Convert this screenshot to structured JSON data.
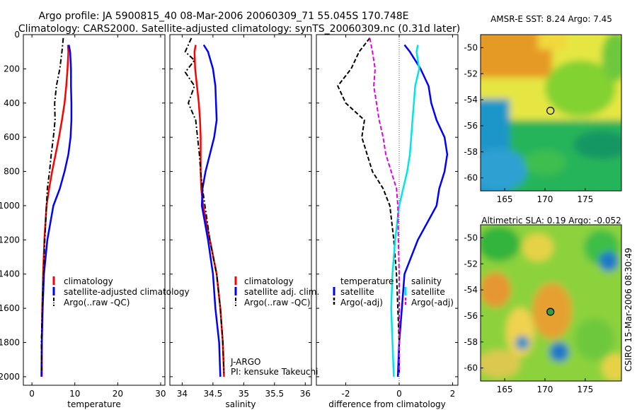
{
  "title": {
    "line1": "Argo profile: JA 5900815_40 08-Mar-2006 20060309_71 55.045S 170.748E",
    "line2": "Climatology: CARS2000. Satellite-adjusted climatology: synTS_20060309.nc (0.31d later)"
  },
  "side_label": "CSIRO 15-Mar-2006 08:30:49",
  "credit": {
    "line1": "J-ARGO",
    "line2": "PI: kensuke Takeuchi"
  },
  "colors": {
    "climatology": "#ff0000",
    "satellite": "#0000ff",
    "argo": "#000000",
    "salinity_sat": "#00e6e6",
    "salinity_argo": "#e600e6",
    "zero_line": "#555555"
  },
  "chart_data": [
    {
      "type": "line",
      "xlabel": "temperature",
      "ylim": [
        2050,
        0
      ],
      "xlim": [
        -2,
        31
      ],
      "xticks": [
        0,
        10,
        20,
        30
      ],
      "yticks": [
        0,
        200,
        400,
        600,
        800,
        1000,
        1200,
        1400,
        1600,
        1800,
        2000
      ],
      "legend": [
        "climatology",
        "satellite-adjusted climatology",
        "Argo(..raw -QC)"
      ],
      "legend_position": "lower-right",
      "series": [
        {
          "name": "climatology",
          "color": "red",
          "style": "solid",
          "x": [
            8.4,
            8.5,
            8.3,
            8.0,
            7.6,
            7.0,
            6.3,
            5.5,
            4.7,
            4.0,
            3.4,
            2.9,
            2.6,
            2.4,
            2.3,
            2.3
          ],
          "y": [
            60,
            100,
            200,
            300,
            400,
            500,
            600,
            700,
            800,
            900,
            1000,
            1200,
            1400,
            1600,
            1800,
            2000
          ]
        },
        {
          "name": "satellite-adjusted climatology",
          "color": "blue",
          "style": "solid",
          "x": [
            8.6,
            8.9,
            9.1,
            9.1,
            9.2,
            9.2,
            9.0,
            8.5,
            7.6,
            6.5,
            5.0,
            3.6,
            2.8,
            2.5,
            2.3,
            2.2
          ],
          "y": [
            60,
            100,
            200,
            300,
            400,
            500,
            600,
            700,
            800,
            900,
            1000,
            1200,
            1400,
            1600,
            1800,
            2000
          ]
        },
        {
          "name": "Argo(..raw -QC)",
          "color": "black",
          "style": "dashdot",
          "x": [
            7.3,
            7.0,
            6.5,
            5.7,
            5.3,
            5.4,
            5.0,
            4.5,
            4.1,
            3.6,
            3.4,
            3.0,
            2.7,
            2.4,
            2.2,
            2.3
          ],
          "y": [
            20,
            100,
            200,
            300,
            400,
            500,
            600,
            700,
            800,
            900,
            1000,
            1200,
            1400,
            1600,
            1800,
            1980
          ]
        }
      ]
    },
    {
      "type": "line",
      "xlabel": "salinity",
      "ylim": [
        2050,
        0
      ],
      "xlim": [
        33.8,
        36.1
      ],
      "xticks": [
        34,
        34.5,
        35,
        35.5,
        36
      ],
      "legend": [
        "climatology",
        "satellite adj. clim.",
        "Argo(..raw -QC)"
      ],
      "legend_position": "lower-right",
      "series": [
        {
          "name": "climatology",
          "color": "red",
          "style": "solid",
          "x": [
            34.22,
            34.2,
            34.21,
            34.24,
            34.27,
            34.29,
            34.3,
            34.3,
            34.3,
            34.31,
            34.34,
            34.45,
            34.56,
            34.62,
            34.66,
            34.68
          ],
          "y": [
            60,
            100,
            200,
            300,
            400,
            500,
            600,
            700,
            800,
            900,
            1000,
            1200,
            1400,
            1600,
            1800,
            2000
          ]
        },
        {
          "name": "satellite adj. clim.",
          "color": "blue",
          "style": "solid",
          "x": [
            34.35,
            34.42,
            34.5,
            34.54,
            34.55,
            34.56,
            34.52,
            34.45,
            34.38,
            34.33,
            34.32,
            34.42,
            34.5,
            34.54,
            34.6,
            34.62
          ],
          "y": [
            60,
            100,
            200,
            300,
            400,
            500,
            600,
            700,
            800,
            900,
            1000,
            1200,
            1400,
            1600,
            1800,
            2000
          ]
        },
        {
          "name": "Argo(..raw -QC)",
          "color": "black",
          "style": "dashdot",
          "x": [
            34.15,
            34.05,
            34.2,
            34.05,
            34.2,
            34.1,
            34.22,
            34.25,
            34.28,
            34.3,
            34.33,
            34.45,
            34.56,
            34.62,
            34.66,
            34.68
          ],
          "y": [
            20,
            100,
            150,
            220,
            300,
            400,
            500,
            600,
            700,
            800,
            900,
            1200,
            1400,
            1600,
            1800,
            1980
          ]
        }
      ]
    },
    {
      "type": "line",
      "xlabel": "difference from climatology",
      "ylim": [
        2050,
        0
      ],
      "xlim": [
        -3.1,
        2.2
      ],
      "xticks": [
        -2,
        0,
        2
      ],
      "legend_groups": [
        {
          "heading": "temperature",
          "entries": [
            "satellite",
            "Argo(-adj)"
          ]
        },
        {
          "heading": "salinity",
          "entries": [
            "satellite",
            "Argo(-adj)"
          ]
        }
      ],
      "legend_position": "lower-center",
      "series": [
        {
          "name": "temperature satellite",
          "color": "blue",
          "style": "solid",
          "x": [
            0.2,
            0.4,
            0.8,
            1.1,
            1.2,
            1.4,
            1.7,
            1.8,
            1.7,
            1.5,
            1.4,
            0.7,
            0.2,
            0.1,
            0.0,
            -0.05
          ],
          "y": [
            60,
            100,
            200,
            300,
            400,
            500,
            600,
            700,
            800,
            900,
            1000,
            1200,
            1400,
            1600,
            1800,
            2000
          ]
        },
        {
          "name": "temperature Argo(-adj)",
          "color": "black",
          "style": "dashed",
          "x": [
            -1.1,
            -1.5,
            -1.8,
            -2.3,
            -2.0,
            -1.3,
            -1.4,
            -1.2,
            -1.0,
            -0.6,
            -0.35,
            -0.2,
            -0.1,
            -0.05,
            0.0,
            0.0
          ],
          "y": [
            20,
            100,
            200,
            300,
            400,
            500,
            600,
            700,
            800,
            900,
            1000,
            1200,
            1400,
            1600,
            1800,
            1980
          ]
        },
        {
          "name": "salinity satellite",
          "color": "cyan",
          "style": "solid",
          "x": [
            0.7,
            0.65,
            0.75,
            0.6,
            0.55,
            0.5,
            0.45,
            0.4,
            0.3,
            0.15,
            0.0,
            -0.15,
            -0.25,
            -0.3,
            -0.25,
            -0.2
          ],
          "y": [
            60,
            100,
            200,
            300,
            400,
            500,
            600,
            700,
            800,
            900,
            1000,
            1200,
            1400,
            1600,
            1800,
            2000
          ]
        },
        {
          "name": "salinity Argo(-adj)",
          "color": "magenta",
          "style": "dashed",
          "x": [
            -1.1,
            -1.0,
            -0.9,
            -0.95,
            -0.85,
            -0.75,
            -0.6,
            -0.5,
            -0.3,
            -0.1,
            -0.05,
            -0.03,
            0.0,
            0.0,
            0.0,
            0.0
          ],
          "y": [
            20,
            100,
            200,
            300,
            400,
            500,
            600,
            700,
            800,
            900,
            1000,
            1200,
            1400,
            1600,
            1800,
            1980
          ]
        }
      ]
    },
    {
      "type": "heatmap",
      "title": "AMSR-E SST: 8.24 Argo: 7.45",
      "xlim": [
        162,
        179.5
      ],
      "ylim": [
        -61,
        -49
      ],
      "xticks": [
        165,
        170,
        175
      ],
      "yticks": [
        -50,
        -52,
        -54,
        -56,
        -58,
        -60
      ],
      "marker": {
        "lon": 170.748,
        "lat": -55.045
      }
    },
    {
      "type": "heatmap",
      "title": "Altimetric SLA: 0.19 Argo: -0.052",
      "xlim": [
        162,
        179.5
      ],
      "ylim": [
        -61,
        -49
      ],
      "xticks": [
        165,
        170,
        175
      ],
      "yticks": [
        -50,
        -52,
        -54,
        -56,
        -58,
        -60
      ],
      "marker": {
        "lon": 170.748,
        "lat": -55.045
      }
    }
  ]
}
